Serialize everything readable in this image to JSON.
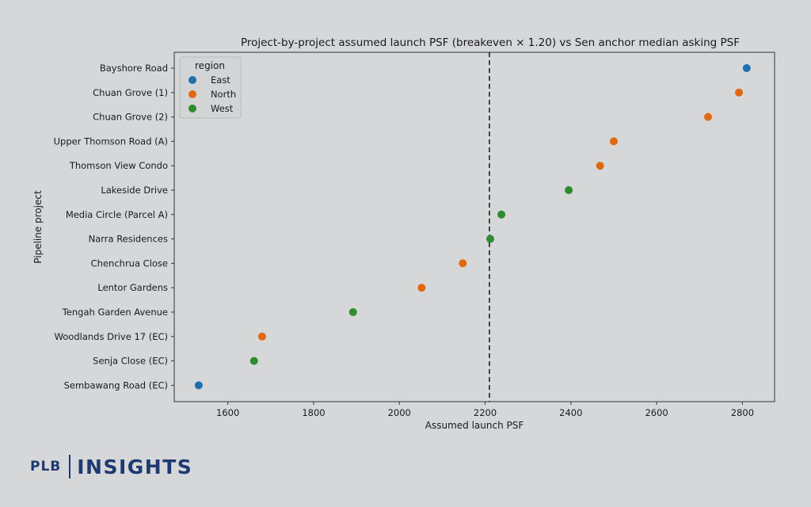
{
  "chart_data": {
    "type": "scatter",
    "title": "Project-by-project assumed launch PSF (breakeven × 1.20) vs Sen anchor median asking PSF",
    "xlabel": "Assumed launch PSF",
    "ylabel": "Pipeline project",
    "xlim": [
      1475,
      2875
    ],
    "x_ticks": [
      "1600",
      "1800",
      "2000",
      "2200",
      "2400",
      "2600",
      "2800"
    ],
    "x_tick_values": [
      1600,
      1800,
      2000,
      2200,
      2400,
      2600,
      2800
    ],
    "categories": [
      "Bayshore Road",
      "Chuan Grove (1)",
      "Chuan Grove (2)",
      "Upper Thomson Road (A)",
      "Thomson View Condo",
      "Lakeside Drive",
      "Media Circle (Parcel A)",
      "Narra Residences",
      "Chenchrua Close",
      "Lentor Gardens",
      "Tengah Garden Avenue",
      "Woodlands Drive 17 (EC)",
      "Senja Close (EC)",
      "Sembawang Road (EC)"
    ],
    "points": [
      {
        "project": "Bayshore Road",
        "x": 2810,
        "region": "East"
      },
      {
        "project": "Chuan Grove (1)",
        "x": 2792,
        "region": "North"
      },
      {
        "project": "Chuan Grove (2)",
        "x": 2720,
        "region": "North"
      },
      {
        "project": "Upper Thomson Road (A)",
        "x": 2500,
        "region": "North"
      },
      {
        "project": "Thomson View Condo",
        "x": 2468,
        "region": "North"
      },
      {
        "project": "Lakeside Drive",
        "x": 2395,
        "region": "West"
      },
      {
        "project": "Media Circle (Parcel A)",
        "x": 2238,
        "region": "West"
      },
      {
        "project": "Narra Residences",
        "x": 2212,
        "region": "West"
      },
      {
        "project": "Chenchrua Close",
        "x": 2148,
        "region": "North"
      },
      {
        "project": "Lentor Gardens",
        "x": 2052,
        "region": "North"
      },
      {
        "project": "Tengah Garden Avenue",
        "x": 1892,
        "region": "West"
      },
      {
        "project": "Woodlands Drive 17 (EC)",
        "x": 1680,
        "region": "North"
      },
      {
        "project": "Senja Close (EC)",
        "x": 1661,
        "region": "West"
      },
      {
        "project": "Sembawang Road (EC)",
        "x": 1532,
        "region": "East"
      }
    ],
    "reference_line": {
      "x": 2210,
      "style": "dashed",
      "color": "#222222"
    },
    "legend": {
      "title": "region",
      "placement": "top-left",
      "entries": [
        {
          "label": "East",
          "color": "#1f6fad"
        },
        {
          "label": "North",
          "color": "#e0690e"
        },
        {
          "label": "West",
          "color": "#2e8b2e"
        }
      ]
    },
    "grid": false
  },
  "branding": {
    "plb": "PLB",
    "insights": "INSIGHTS"
  }
}
